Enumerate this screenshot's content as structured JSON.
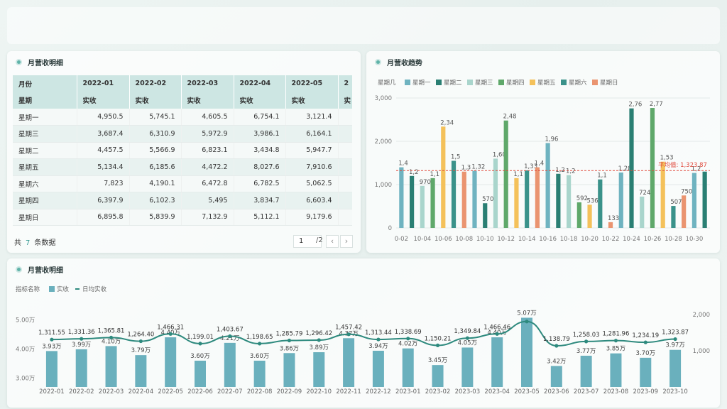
{
  "table_panel": {
    "title": "月营收明细",
    "header_row1": [
      "月份",
      "2022-01",
      "2022-02",
      "2022-03",
      "2022-04",
      "2022-05",
      "2"
    ],
    "header_row2": [
      "星期",
      "实收",
      "实收",
      "实收",
      "实收",
      "实收",
      "实"
    ],
    "rows": [
      [
        "星期一",
        "4,950.5",
        "5,745.1",
        "4,605.5",
        "6,754.1",
        "3,121.4"
      ],
      [
        "星期三",
        "3,687.4",
        "6,310.9",
        "5,972.9",
        "3,986.1",
        "6,164.1"
      ],
      [
        "星期二",
        "4,457.5",
        "5,566.9",
        "6,823.1",
        "3,434.8",
        "5,947.7"
      ],
      [
        "星期五",
        "5,134.4",
        "6,185.6",
        "4,472.2",
        "8,027.6",
        "7,910.6"
      ],
      [
        "星期六",
        "7,823",
        "4,190.1",
        "6,472.8",
        "6,782.5",
        "5,062.5"
      ],
      [
        "星期四",
        "6,397.9",
        "6,102.3",
        "5,495",
        "3,834.7",
        "6,603.4"
      ],
      [
        "星期日",
        "6,895.8",
        "5,839.9",
        "7,132.9",
        "5,112.1",
        "9,179.6"
      ]
    ],
    "footer_prefix": "共",
    "footer_count": "7",
    "footer_suffix": "条数据",
    "page_current": "1",
    "page_total": "/2",
    "prev_icon": "chevron-left-icon",
    "next_icon": "chevron-right-icon"
  },
  "trend_panel": {
    "title": "月营收趋势"
  },
  "bottom_panel": {
    "title": "月营收明细"
  },
  "colors": {
    "accent": "#5fb3a8",
    "bar_main": "#6ab0bd",
    "line_main": "#2e8a7e",
    "avg_line": "#e04a3c"
  },
  "chart_data": [
    {
      "type": "bar",
      "legend_label": "星期几",
      "legend_position": "top-left",
      "series": [
        {
          "name": "星期一",
          "color": "#6fb3c0"
        },
        {
          "name": "星期二",
          "color": "#2a7f73"
        },
        {
          "name": "星期三",
          "color": "#a9d5cc"
        },
        {
          "name": "星期四",
          "color": "#5fa86a"
        },
        {
          "name": "星期五",
          "color": "#f4c15a"
        },
        {
          "name": "星期六",
          "color": "#3a928a"
        },
        {
          "name": "星期日",
          "color": "#ea9470"
        }
      ],
      "x_ticks": [
        "0-02",
        "10-04",
        "10-06",
        "10-08",
        "10-10",
        "10-12",
        "10-14",
        "10-16",
        "10-18",
        "10-20",
        "10-22",
        "10-24",
        "10-26",
        "10-28",
        "10-30"
      ],
      "bars": [
        {
          "series": 0,
          "value": 1400,
          "label": "1,4"
        },
        {
          "series": 1,
          "value": 1200,
          "label": "1,2"
        },
        {
          "series": 2,
          "value": 970,
          "label": "970"
        },
        {
          "series": 3,
          "value": 1150,
          "label": "1,1"
        },
        {
          "series": 4,
          "value": 2340,
          "label": "2,34"
        },
        {
          "series": 5,
          "value": 1550,
          "label": "1,5"
        },
        {
          "series": 6,
          "value": 1300,
          "label": "1,3"
        },
        {
          "series": 0,
          "value": 1320,
          "label": "1,32"
        },
        {
          "series": 1,
          "value": 570,
          "label": "570"
        },
        {
          "series": 2,
          "value": 1600,
          "label": "1,60"
        },
        {
          "series": 3,
          "value": 2480,
          "label": "2,48"
        },
        {
          "series": 4,
          "value": 1150,
          "label": "1,1"
        },
        {
          "series": 5,
          "value": 1330,
          "label": "1,33"
        },
        {
          "series": 6,
          "value": 1400,
          "label": "1,4"
        },
        {
          "series": 0,
          "value": 1960,
          "label": "1,96"
        },
        {
          "series": 1,
          "value": 1250,
          "label": "1,2"
        },
        {
          "series": 2,
          "value": 1220,
          "label": "1,2"
        },
        {
          "series": 3,
          "value": 592,
          "label": "592"
        },
        {
          "series": 4,
          "value": 536,
          "label": "536"
        },
        {
          "series": 5,
          "value": 1120,
          "label": "1,1"
        },
        {
          "series": 6,
          "value": 133,
          "label": "133"
        },
        {
          "series": 0,
          "value": 1280,
          "label": "1,28"
        },
        {
          "series": 1,
          "value": 2760,
          "label": "2,76"
        },
        {
          "series": 2,
          "value": 724,
          "label": "724"
        },
        {
          "series": 3,
          "value": 2770,
          "label": "2,77"
        },
        {
          "series": 4,
          "value": 1530,
          "label": "1,53"
        },
        {
          "series": 5,
          "value": 507,
          "label": "507"
        },
        {
          "series": 6,
          "value": 750,
          "label": "750"
        },
        {
          "series": 0,
          "value": 1270,
          "label": "1,2"
        },
        {
          "series": 1,
          "value": 1300,
          "label": ""
        }
      ],
      "y_ticks": [
        "3,000",
        "2,000",
        "1,000",
        "0"
      ],
      "ylim": [
        0,
        3000
      ],
      "average": 1323.87,
      "average_label": "平均值: 1,323.87"
    },
    {
      "type": "bar+line",
      "legend_prefix": "指标名称",
      "legend": [
        "实收",
        "日均实收"
      ],
      "categories": [
        "2022-01",
        "2022-02",
        "2022-03",
        "2022-04",
        "2022-05",
        "2022-06",
        "2022-07",
        "2022-08",
        "2022-09",
        "2022-10",
        "2022-11",
        "2022-12",
        "2023-01",
        "2023-02",
        "2023-03",
        "2023-04",
        "2023-05",
        "2023-06",
        "2023-07",
        "2023-08",
        "2023-09",
        "2023-10"
      ],
      "bar_values": [
        3.93,
        3.99,
        4.1,
        3.79,
        4.4,
        3.6,
        4.21,
        3.6,
        3.86,
        3.89,
        4.37,
        3.94,
        4.02,
        3.45,
        4.05,
        4.4,
        5.07,
        3.42,
        3.77,
        3.85,
        3.7,
        3.97
      ],
      "bar_labels": [
        "3.93万",
        "3.99万",
        "4.10万",
        "3.79万",
        "4.40万",
        "3.60万",
        "4.21万",
        "3.60万",
        "3.86万",
        "3.89万",
        "4.37万",
        "3.94万",
        "4.02万",
        "3.45万",
        "4.05万",
        "4.40万",
        "5.07万",
        "3.42万",
        "3.77万",
        "3.85万",
        "3.70万",
        "3.97万"
      ],
      "line_values": [
        1311.55,
        1331.36,
        1365.81,
        1264.4,
        1466.31,
        1199.01,
        1403.67,
        1198.65,
        1285.79,
        1296.42,
        1457.42,
        1313.44,
        1338.69,
        1150.21,
        1349.84,
        1466.46,
        1810,
        1138.79,
        1258.03,
        1281.96,
        1234.19,
        1323.87
      ],
      "line_labels": [
        "1,311.55",
        "1,331.36",
        "1,365.81",
        "1,264.40",
        "1,466.31",
        "1,199.01",
        "1,403.67",
        "1,198.65",
        "1,285.79",
        "1,296.42",
        "1,457.42",
        "1,313.44",
        "1,338.69",
        "1,150.21",
        "1,349.84",
        "1,466.46",
        "",
        "1,138.79",
        "1,258.03",
        "1,281.96",
        "1,234.19",
        "1,323.87"
      ],
      "y_left_ticks": [
        "5.00万",
        "4.00万",
        "3.00万"
      ],
      "ylim_left": [
        2.7,
        5.3
      ],
      "y_right_ticks": [
        "2,000",
        "1,000"
      ],
      "ylim_right": [
        0,
        2100
      ]
    }
  ]
}
